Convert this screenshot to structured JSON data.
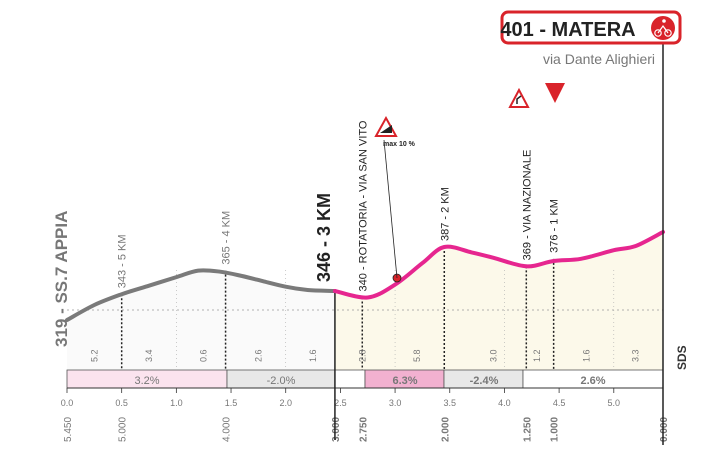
{
  "finish": {
    "label": "401 - MATERA",
    "street": "via Dante Alighieri",
    "icon": "finish-cyclist-icon"
  },
  "annotations": {
    "start_road": "319 - SS.7 APPIA",
    "three_km": "346 - 3 KM",
    "max_gradient": "max 10 %",
    "steep_icon": "steep-climb-warning-icon",
    "curve_icon": "dangerous-curve-icon",
    "flag_icon": "last-km-flag-icon",
    "vertical_labels": [
      "343 - 5 KM",
      "365 - 4 KM",
      "340 - ROTATORIA - VIA SAN VITO",
      "387 - 2 KM",
      "369 - VIA NAZIONALE",
      "376 - 1 KM"
    ]
  },
  "colors": {
    "profile_grey": "#7a7a7a",
    "profile_magenta": "#e6268f",
    "fill_last_3km": "#fcf9ea",
    "finish_red": "#d9232a",
    "gradient_band_pink": "#fbe3ee",
    "gradient_band_grey": "#e8e8e8",
    "gradient_band_magenta": "#f2b1d0"
  },
  "sds_label": "SDS",
  "chart_data": {
    "type": "area",
    "x_unit": "km",
    "y_unit": "m",
    "xlim": [
      0,
      5.45
    ],
    "distance_ticks": [
      "0.0",
      "0.5",
      "1.0",
      "1.5",
      "2.0",
      "2.5",
      "3.0",
      "3.5",
      "4.0",
      "4.5",
      "5.0"
    ],
    "remaining_ticks": [
      "5.450",
      "5.000",
      "4.000",
      "3.000",
      "2.750",
      "2.000",
      "1.250",
      "1.000",
      "0.000"
    ],
    "series": [
      {
        "x": [
          0,
          0.25,
          0.5,
          0.75,
          1.0,
          1.2,
          1.4,
          1.6,
          1.8,
          2.0,
          2.2,
          2.45
        ],
        "y": [
          319,
          333,
          343,
          351,
          359,
          365,
          364,
          360,
          355,
          350,
          347,
          346
        ]
      },
      {
        "x": [
          2.45,
          2.75,
          3.0,
          3.25,
          3.45,
          3.7,
          3.9,
          4.2,
          4.45,
          4.7,
          5.0,
          5.2,
          5.45
        ],
        "y": [
          346,
          340,
          352,
          372,
          387,
          382,
          377,
          369,
          374,
          376,
          384,
          388,
          401
        ]
      }
    ],
    "segment_lengths": [
      "5.2",
      "3.4",
      "0.6",
      "2.6",
      "1.6",
      "2.8",
      "5.8",
      "3.0",
      "1.2",
      "1.6",
      "3.3"
    ],
    "gradients": [
      "3.2%",
      "-2.0%",
      "6.3%",
      "-2.4%",
      "2.6%"
    ]
  }
}
